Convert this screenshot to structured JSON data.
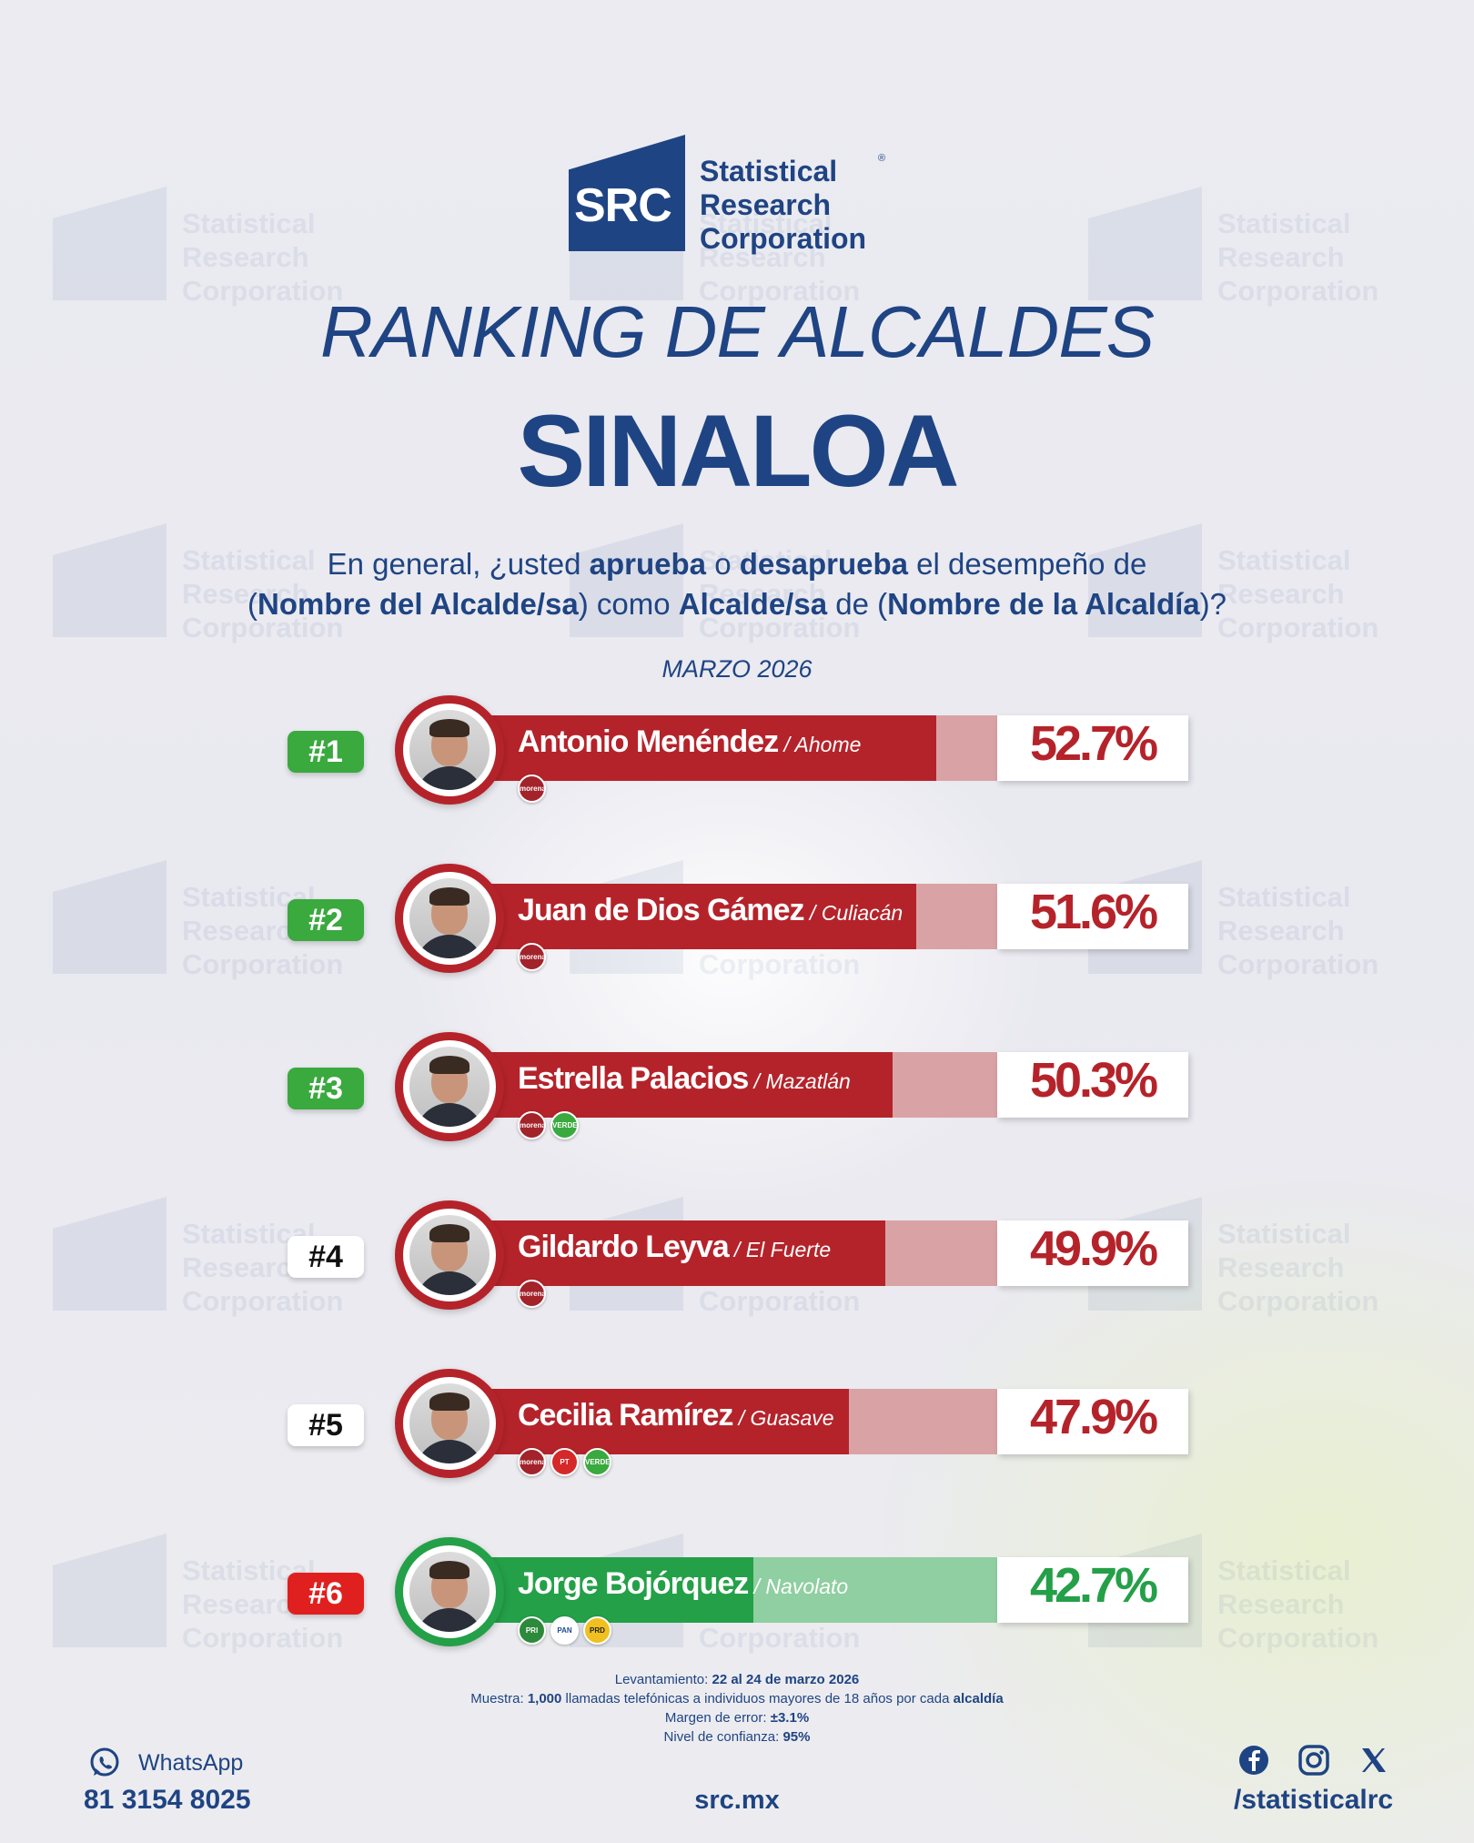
{
  "brand": {
    "logo_text": "SRC",
    "name_lines": [
      "Statistical",
      "Research",
      "Corporation"
    ]
  },
  "title": "RANKING DE ALCALDES",
  "state": "SINALOA",
  "question": {
    "p1": "En general, ¿usted ",
    "b1": "aprueba",
    "p2": " o ",
    "b2": "desaprueba",
    "p3": " el desempeño de",
    "p4": "(",
    "b3": "Nombre del Alcalde/sa",
    "p5": ") como ",
    "b4": "Alcalde/sa",
    "p6": " de (",
    "b5": "Nombre de la Alcaldía",
    "p7": ")?"
  },
  "date": "MARZO 2026",
  "chart_data": {
    "type": "bar",
    "orientation": "horizontal",
    "categories": [
      "Antonio Menéndez",
      "Juan de Dios Gámez",
      "Estrella Palacios",
      "Gildardo Leyva",
      "Cecilia Ramírez",
      "Jorge Bojórquez"
    ],
    "values": [
      52.7,
      51.6,
      50.3,
      49.9,
      47.9,
      42.7
    ],
    "unit": "%",
    "xlim": [
      0,
      100
    ]
  },
  "rows": [
    {
      "rank": "#1",
      "name": "Antonio Menéndez",
      "location": "/ Ahome",
      "pct": "52.7%",
      "value": 52.7,
      "badge": "green",
      "bar": "red",
      "parties": [
        "morena"
      ]
    },
    {
      "rank": "#2",
      "name": "Juan de Dios Gámez",
      "location": "/ Culiacán",
      "pct": "51.6%",
      "value": 51.6,
      "badge": "green",
      "bar": "red",
      "parties": [
        "morena"
      ]
    },
    {
      "rank": "#3",
      "name": "Estrella Palacios",
      "location": "/ Mazatlán",
      "pct": "50.3%",
      "value": 50.3,
      "badge": "green",
      "bar": "red",
      "parties": [
        "morena",
        "VERDE"
      ]
    },
    {
      "rank": "#4",
      "name": "Gildardo Leyva",
      "location": "/ El Fuerte",
      "pct": "49.9%",
      "value": 49.9,
      "badge": "white",
      "bar": "red",
      "parties": [
        "morena"
      ]
    },
    {
      "rank": "#5",
      "name": "Cecilia Ramírez",
      "location": "/ Guasave",
      "pct": "47.9%",
      "value": 47.9,
      "badge": "white",
      "bar": "red",
      "parties": [
        "morena",
        "PT",
        "VERDE"
      ]
    },
    {
      "rank": "#6",
      "name": "Jorge Bojórquez",
      "location": "/ Navolato",
      "pct": "42.7%",
      "value": 42.7,
      "badge": "red",
      "bar": "green",
      "parties": [
        "PRI",
        "PAN",
        "PRD"
      ]
    }
  ],
  "colors": {
    "navy": "#1f4483",
    "red": "#b5232a",
    "red_light": "#d9a3a5",
    "green": "#24a048",
    "green_light": "#8fcfa1",
    "badge_green": "#3aa93e",
    "badge_red": "#e0201f"
  },
  "notes": {
    "l1a": "Levantamiento: ",
    "l1b": "22 al 24 de marzo 2026",
    "l2a": "Muestra: ",
    "l2b": "1,000",
    "l2c": " llamadas telefónicas a individuos mayores de 18 años por cada ",
    "l2d": "alcaldía",
    "l3a": "Margen de error: ",
    "l3b": "±3.1%",
    "l4a": "Nivel de confianza: ",
    "l4b": "95%"
  },
  "footer": {
    "whatsapp_label": "WhatsApp",
    "phone": "81 3154 8025",
    "website": "src.mx",
    "handle": "/statisticalrc",
    "icons": [
      "whatsapp-icon",
      "facebook-icon",
      "instagram-icon",
      "x-icon"
    ]
  }
}
